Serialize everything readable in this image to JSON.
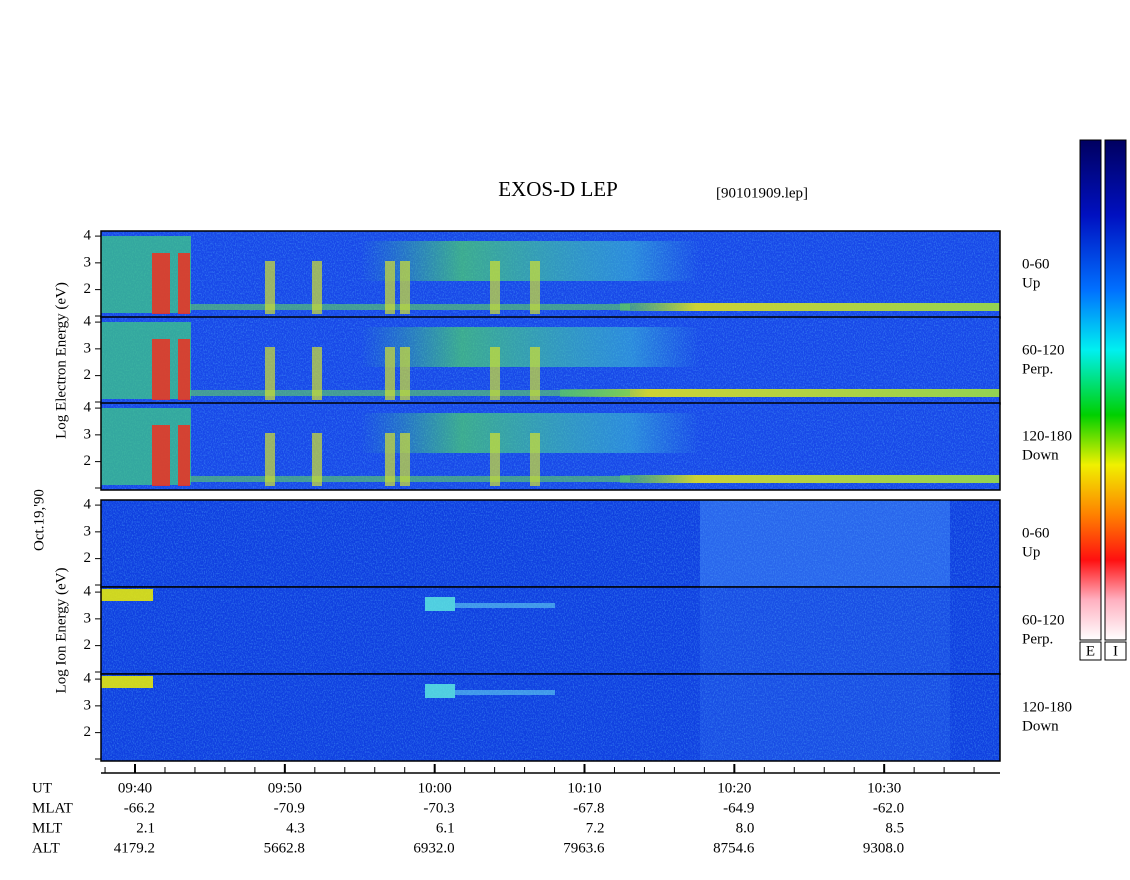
{
  "chart_data": {
    "type": "spectrogram",
    "title": "EXOS-D LEP",
    "file_label": "[90101909.lep]",
    "date_label": "Oct.19,'90",
    "groups": [
      {
        "label": "Log Electron Energy (eV)",
        "panels": [
          {
            "label": [
              "0-60",
              "Up"
            ]
          },
          {
            "label": [
              "60-120",
              "Perp."
            ]
          },
          {
            "label": [
              "120-180",
              "Down"
            ]
          }
        ]
      },
      {
        "label": "Log Ion Energy (eV)",
        "panels": [
          {
            "label": [
              "0-60",
              "Up"
            ]
          },
          {
            "label": [
              "60-120",
              "Perp."
            ]
          },
          {
            "label": [
              "120-180",
              "Down"
            ]
          }
        ]
      }
    ],
    "ylim": [
      0.94,
      4.19
    ],
    "yticks": [
      2,
      3,
      4
    ],
    "xlim": [
      577.73,
      637.73
    ],
    "xticks": [
      {
        "value": 580,
        "label": "09:40"
      },
      {
        "value": 590,
        "label": "09:50"
      },
      {
        "value": 600,
        "label": "10:00"
      },
      {
        "value": 610,
        "label": "10:10"
      },
      {
        "value": 620,
        "label": "10:20"
      },
      {
        "value": 630,
        "label": "10:30"
      }
    ],
    "xlabel": "UT",
    "aux_rows": [
      {
        "label": "MLAT",
        "values": [
          "-66.2",
          "-70.9",
          "-70.3",
          "-67.8",
          "-64.9",
          "-62.0"
        ]
      },
      {
        "label": "MLT",
        "values": [
          "2.1",
          "4.3",
          "6.1",
          "7.2",
          "8.0",
          "8.5"
        ]
      },
      {
        "label": "ALT",
        "values": [
          "4179.2",
          "5662.8",
          "6932.0",
          "7963.6",
          "8754.6",
          "9308.0"
        ]
      }
    ],
    "colorbars": [
      "E",
      "I"
    ]
  }
}
